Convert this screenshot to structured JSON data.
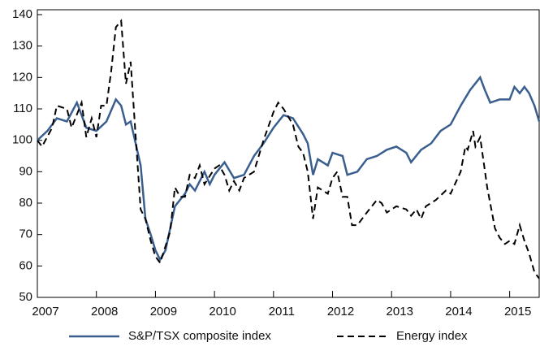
{
  "chart_data": {
    "type": "line",
    "series": [
      {
        "name": "S&P/TSX composite index",
        "color": "#3a5f8f",
        "dash": false,
        "x": [
          2007.0,
          2007.17,
          2007.33,
          2007.5,
          2007.67,
          2007.83,
          2008.0,
          2008.17,
          2008.33,
          2008.42,
          2008.5,
          2008.58,
          2008.75,
          2008.83,
          2008.92,
          2009.0,
          2009.08,
          2009.17,
          2009.33,
          2009.5,
          2009.58,
          2009.67,
          2009.83,
          2009.92,
          2010.0,
          2010.17,
          2010.33,
          2010.5,
          2010.67,
          2010.83,
          2011.0,
          2011.17,
          2011.33,
          2011.5,
          2011.58,
          2011.67,
          2011.75,
          2011.92,
          2012.0,
          2012.17,
          2012.25,
          2012.42,
          2012.58,
          2012.75,
          2012.92,
          2013.08,
          2013.25,
          2013.33,
          2013.5,
          2013.67,
          2013.83,
          2014.0,
          2014.17,
          2014.33,
          2014.5,
          2014.58,
          2014.67,
          2014.83,
          2015.0,
          2015.08,
          2015.17,
          2015.25,
          2015.33,
          2015.42,
          2015.5
        ],
        "values": [
          100,
          103,
          107,
          106,
          112,
          104,
          103,
          106,
          113,
          111,
          105,
          106,
          92,
          75,
          70,
          65,
          62,
          65,
          79,
          83,
          86,
          84,
          90,
          86,
          89,
          93,
          88,
          89,
          95,
          99,
          104,
          108,
          107,
          102,
          99,
          89,
          94,
          92,
          96,
          95,
          89,
          90,
          94,
          95,
          97,
          98,
          96,
          93,
          97,
          99,
          103,
          105,
          111,
          116,
          120,
          116,
          112,
          113,
          113,
          117,
          115,
          117,
          115,
          111,
          106
        ]
      },
      {
        "name": "Energy index",
        "color": "#000000",
        "dash": true,
        "x": [
          2007.0,
          2007.08,
          2007.25,
          2007.33,
          2007.5,
          2007.58,
          2007.75,
          2007.83,
          2007.92,
          2008.0,
          2008.08,
          2008.17,
          2008.25,
          2008.33,
          2008.42,
          2008.5,
          2008.58,
          2008.67,
          2008.75,
          2008.83,
          2008.92,
          2009.0,
          2009.08,
          2009.25,
          2009.33,
          2009.42,
          2009.5,
          2009.58,
          2009.67,
          2009.75,
          2009.83,
          2010.0,
          2010.08,
          2010.17,
          2010.25,
          2010.33,
          2010.42,
          2010.5,
          2010.67,
          2010.83,
          2011.0,
          2011.08,
          2011.17,
          2011.33,
          2011.42,
          2011.5,
          2011.58,
          2011.67,
          2011.75,
          2011.92,
          2012.0,
          2012.08,
          2012.17,
          2012.25,
          2012.33,
          2012.42,
          2012.58,
          2012.75,
          2012.83,
          2012.92,
          2013.08,
          2013.25,
          2013.33,
          2013.42,
          2013.5,
          2013.58,
          2013.75,
          2013.92,
          2014.0,
          2014.17,
          2014.25,
          2014.29,
          2014.38,
          2014.42,
          2014.5,
          2014.62,
          2014.75,
          2014.83,
          2014.92,
          2015.0,
          2015.08,
          2015.17,
          2015.25,
          2015.33,
          2015.42,
          2015.5
        ],
        "values": [
          100,
          98,
          104,
          111,
          110,
          104,
          112,
          101,
          107,
          101,
          111,
          111,
          122,
          136,
          138,
          118,
          125,
          100,
          78,
          75,
          68,
          63,
          61,
          71,
          85,
          82,
          82,
          89,
          88,
          92,
          86,
          91,
          92,
          89,
          84,
          87,
          84,
          88,
          90,
          100,
          109,
          112,
          110,
          105,
          98,
          96,
          90,
          75,
          85,
          83,
          88,
          90,
          82,
          82,
          73,
          73,
          77,
          81,
          80,
          77,
          79,
          78,
          76,
          78,
          75,
          79,
          81,
          84,
          83,
          90,
          98,
          97,
          103,
          98,
          101,
          85,
          72,
          69,
          67,
          68,
          67,
          73,
          68,
          64,
          58,
          56
        ]
      }
    ],
    "xlim": [
      2007.0,
      2015.5
    ],
    "xticks": [
      2007,
      2008,
      2009,
      2010,
      2011,
      2012,
      2013,
      2014,
      2015
    ],
    "ylim": [
      50,
      140
    ],
    "yticks": [
      50,
      60,
      70,
      80,
      90,
      100,
      110,
      120,
      130,
      140
    ],
    "legend": "bottom"
  }
}
